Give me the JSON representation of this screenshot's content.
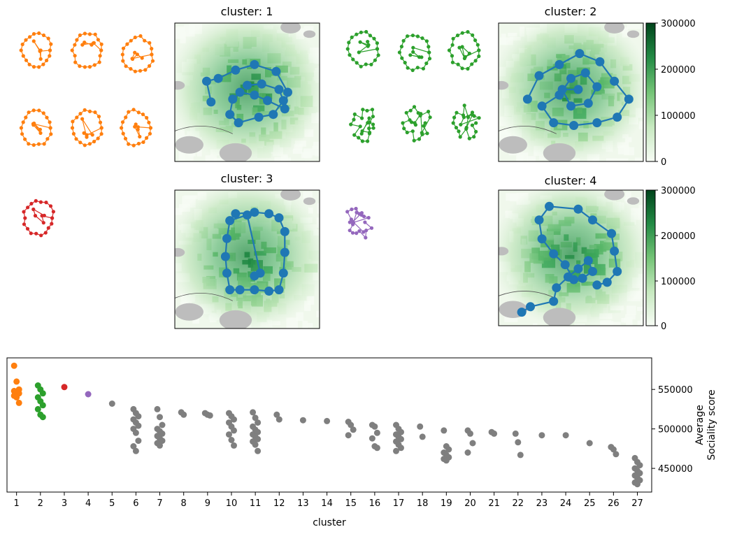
{
  "colors": {
    "orange": "#ff7f0e",
    "green": "#2ca02c",
    "red": "#d62728",
    "purple": "#9467bd",
    "blue": "#1f77b4",
    "gray": "#7f7f7f",
    "map_dark": "#00441b",
    "map_light": "#f7fcf5"
  },
  "chart_data": [
    {
      "type": "map",
      "title": "cluster: 1",
      "color": "#1f77b4",
      "route": [
        [
          0.25,
          0.57
        ],
        [
          0.22,
          0.42
        ],
        [
          0.3,
          0.4
        ],
        [
          0.42,
          0.34
        ],
        [
          0.55,
          0.3
        ],
        [
          0.7,
          0.35
        ],
        [
          0.78,
          0.5
        ],
        [
          0.76,
          0.62
        ],
        [
          0.64,
          0.56
        ],
        [
          0.55,
          0.52
        ],
        [
          0.45,
          0.5
        ],
        [
          0.4,
          0.55
        ],
        [
          0.38,
          0.66
        ],
        [
          0.44,
          0.72
        ],
        [
          0.58,
          0.68
        ],
        [
          0.68,
          0.66
        ],
        [
          0.75,
          0.56
        ],
        [
          0.72,
          0.48
        ],
        [
          0.6,
          0.44
        ],
        [
          0.5,
          0.45
        ]
      ],
      "pattern_color": "#ff7f0e",
      "route_thumbnails": 6
    },
    {
      "type": "map",
      "title": "cluster: 2",
      "color": "#1f77b4",
      "route": [
        [
          0.2,
          0.55
        ],
        [
          0.28,
          0.38
        ],
        [
          0.42,
          0.3
        ],
        [
          0.56,
          0.22
        ],
        [
          0.7,
          0.28
        ],
        [
          0.8,
          0.42
        ],
        [
          0.9,
          0.55
        ],
        [
          0.82,
          0.68
        ],
        [
          0.68,
          0.72
        ],
        [
          0.52,
          0.74
        ],
        [
          0.38,
          0.72
        ],
        [
          0.3,
          0.6
        ],
        [
          0.42,
          0.52
        ],
        [
          0.5,
          0.4
        ],
        [
          0.6,
          0.36
        ],
        [
          0.68,
          0.46
        ],
        [
          0.62,
          0.58
        ],
        [
          0.5,
          0.6
        ],
        [
          0.44,
          0.48
        ],
        [
          0.55,
          0.48
        ]
      ],
      "pattern_color": "#2ca02c",
      "route_thumbnails": 6
    },
    {
      "type": "map",
      "title": "cluster: 3",
      "color": "#1f77b4",
      "route": [
        [
          0.42,
          0.17
        ],
        [
          0.55,
          0.16
        ],
        [
          0.65,
          0.17
        ],
        [
          0.72,
          0.2
        ],
        [
          0.76,
          0.3
        ],
        [
          0.76,
          0.45
        ],
        [
          0.75,
          0.6
        ],
        [
          0.72,
          0.72
        ],
        [
          0.65,
          0.73
        ],
        [
          0.55,
          0.72
        ],
        [
          0.45,
          0.72
        ],
        [
          0.38,
          0.72
        ],
        [
          0.36,
          0.6
        ],
        [
          0.35,
          0.48
        ],
        [
          0.36,
          0.35
        ],
        [
          0.38,
          0.22
        ],
        [
          0.5,
          0.18
        ],
        [
          0.59,
          0.6
        ],
        [
          0.55,
          0.62
        ]
      ],
      "pattern_color": "#d62728",
      "route_thumbnails": 1
    },
    {
      "type": "map",
      "title": "cluster: 4",
      "color": "#1f77b4",
      "route": [
        [
          0.16,
          0.9
        ],
        [
          0.22,
          0.86
        ],
        [
          0.38,
          0.82
        ],
        [
          0.4,
          0.72
        ],
        [
          0.48,
          0.64
        ],
        [
          0.55,
          0.58
        ],
        [
          0.62,
          0.52
        ],
        [
          0.65,
          0.6
        ],
        [
          0.58,
          0.65
        ],
        [
          0.52,
          0.66
        ],
        [
          0.46,
          0.55
        ],
        [
          0.38,
          0.47
        ],
        [
          0.3,
          0.36
        ],
        [
          0.28,
          0.22
        ],
        [
          0.35,
          0.12
        ],
        [
          0.55,
          0.14
        ],
        [
          0.65,
          0.22
        ],
        [
          0.78,
          0.32
        ],
        [
          0.8,
          0.45
        ],
        [
          0.82,
          0.6
        ],
        [
          0.75,
          0.68
        ],
        [
          0.68,
          0.7
        ]
      ],
      "pattern_color": "#9467bd",
      "route_thumbnails": 1
    },
    {
      "type": "colorbar",
      "ticks": [
        "300000",
        "200000",
        "100000",
        "0"
      ],
      "ylim": [
        0,
        300000
      ]
    },
    {
      "type": "colorbar",
      "ticks": [
        "300000",
        "200000",
        "100000",
        "0"
      ],
      "ylim": [
        0,
        300000
      ]
    },
    {
      "type": "scatter",
      "xlabel": "cluster",
      "ylabel": "Average\nSociality score",
      "ylim": [
        420000,
        590000
      ],
      "xlim": [
        0.6,
        27.6
      ],
      "x_ticks": [
        "1",
        "2",
        "3",
        "4",
        "5",
        "6",
        "7",
        "8",
        "9",
        "10",
        "11",
        "12",
        "13",
        "14",
        "15",
        "16",
        "17",
        "18",
        "19",
        "20",
        "21",
        "22",
        "23",
        "24",
        "25",
        "26",
        "27"
      ],
      "y_ticks": [
        {
          "value": 450000,
          "label": "450000"
        },
        {
          "value": 500000,
          "label": "500000"
        },
        {
          "value": 550000,
          "label": "550000"
        }
      ],
      "grid": false,
      "series": [
        {
          "cluster": 1,
          "color": "#ff7f0e",
          "values": [
            580000,
            560000,
            550000,
            548000,
            546000,
            545000,
            542000,
            540000,
            533000
          ]
        },
        {
          "cluster": 2,
          "color": "#2ca02c",
          "values": [
            555000,
            550000,
            545000,
            540000,
            535000,
            530000,
            525000,
            518000,
            515000
          ]
        },
        {
          "cluster": 3,
          "color": "#d62728",
          "values": [
            553000
          ]
        },
        {
          "cluster": 4,
          "color": "#9467bd",
          "values": [
            544000
          ]
        },
        {
          "cluster": 5,
          "color": "#7f7f7f",
          "values": [
            532000
          ]
        },
        {
          "cluster": 6,
          "color": "#7f7f7f",
          "values": [
            525000,
            520000,
            516000,
            512000,
            508000,
            504000,
            500000,
            495000,
            485000,
            478000,
            472000
          ]
        },
        {
          "cluster": 7,
          "color": "#7f7f7f",
          "values": [
            525000,
            515000,
            505000,
            500000,
            497000,
            494000,
            491000,
            488000,
            485000,
            482000,
            479000
          ]
        },
        {
          "cluster": 8,
          "color": "#7f7f7f",
          "values": [
            521000,
            518000
          ]
        },
        {
          "cluster": 9,
          "color": "#7f7f7f",
          "values": [
            520000,
            518000,
            517000
          ]
        },
        {
          "cluster": 10,
          "color": "#7f7f7f",
          "values": [
            520000,
            516000,
            512000,
            508000,
            503000,
            498000,
            493000,
            486000,
            479000
          ]
        },
        {
          "cluster": 11,
          "color": "#7f7f7f",
          "values": [
            521000,
            514000,
            508000,
            503000,
            499000,
            496000,
            493000,
            490000,
            487000,
            484000,
            480000,
            472000
          ]
        },
        {
          "cluster": 12,
          "color": "#7f7f7f",
          "values": [
            518000,
            512000
          ]
        },
        {
          "cluster": 13,
          "color": "#7f7f7f",
          "values": [
            511000
          ]
        },
        {
          "cluster": 14,
          "color": "#7f7f7f",
          "values": [
            510000
          ]
        },
        {
          "cluster": 15,
          "color": "#7f7f7f",
          "values": [
            509000,
            505000,
            499000,
            492000
          ]
        },
        {
          "cluster": 16,
          "color": "#7f7f7f",
          "values": [
            505000,
            503000,
            495000,
            488000,
            478000,
            476000
          ]
        },
        {
          "cluster": 17,
          "color": "#7f7f7f",
          "values": [
            505000,
            500000,
            496000,
            493000,
            490000,
            487000,
            484000,
            480000,
            476000,
            472000
          ]
        },
        {
          "cluster": 18,
          "color": "#7f7f7f",
          "values": [
            503000,
            490000
          ]
        },
        {
          "cluster": 19,
          "color": "#7f7f7f",
          "values": [
            498000,
            478000,
            474000,
            470000,
            467000,
            464000,
            462000,
            460000
          ]
        },
        {
          "cluster": 20,
          "color": "#7f7f7f",
          "values": [
            498000,
            494000,
            482000,
            470000
          ]
        },
        {
          "cluster": 21,
          "color": "#7f7f7f",
          "values": [
            496000,
            494000
          ]
        },
        {
          "cluster": 22,
          "color": "#7f7f7f",
          "values": [
            494000,
            483000,
            467000
          ]
        },
        {
          "cluster": 23,
          "color": "#7f7f7f",
          "values": [
            492000
          ]
        },
        {
          "cluster": 24,
          "color": "#7f7f7f",
          "values": [
            492000
          ]
        },
        {
          "cluster": 25,
          "color": "#7f7f7f",
          "values": [
            482000
          ]
        },
        {
          "cluster": 26,
          "color": "#7f7f7f",
          "values": [
            477000,
            474000,
            468000
          ]
        },
        {
          "cluster": 27,
          "color": "#7f7f7f",
          "values": [
            463000,
            458000,
            454000,
            450000,
            447000,
            444000,
            441000,
            438000,
            435000,
            432000,
            430000
          ]
        }
      ]
    }
  ]
}
